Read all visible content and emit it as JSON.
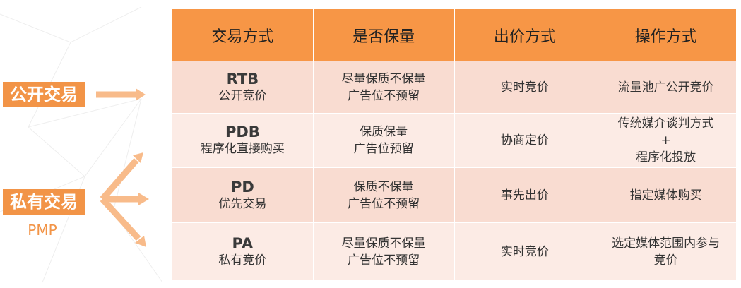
{
  "left": {
    "public_label": "公开交易",
    "private_label": "私有交易",
    "private_sub": "PMP"
  },
  "colors": {
    "header": "#f79646",
    "tag": "#f29447",
    "arrow": "#f8bb8a",
    "row_dark": "#f9dcd1",
    "row_light": "#fcebe5"
  },
  "headers": [
    "交易方式",
    "是否保量",
    "出价方式",
    "操作方式"
  ],
  "rows": [
    {
      "code": "RTB",
      "name": "公开竞价",
      "guarantee": [
        "尽量保质不保量",
        "广告位不预留"
      ],
      "bid": "实时竞价",
      "op": [
        "流量池广公开竞价"
      ]
    },
    {
      "code": "PDB",
      "name": "程序化直接购买",
      "guarantee": [
        "保质保量",
        "广告位预留"
      ],
      "bid": "协商定价",
      "op": [
        "传统媒介谈判方式",
        "+",
        "程序化投放"
      ]
    },
    {
      "code": "PD",
      "name": "优先交易",
      "guarantee": [
        "保质不保量",
        "广告位不预留"
      ],
      "bid": "事先出价",
      "op": [
        "指定媒体购买"
      ]
    },
    {
      "code": "PA",
      "name": "私有竞价",
      "guarantee": [
        "尽量保质不保量",
        "广告位不预留"
      ],
      "bid": "实时竞价",
      "op": [
        "选定媒体范围内参与",
        "竞价"
      ]
    }
  ]
}
